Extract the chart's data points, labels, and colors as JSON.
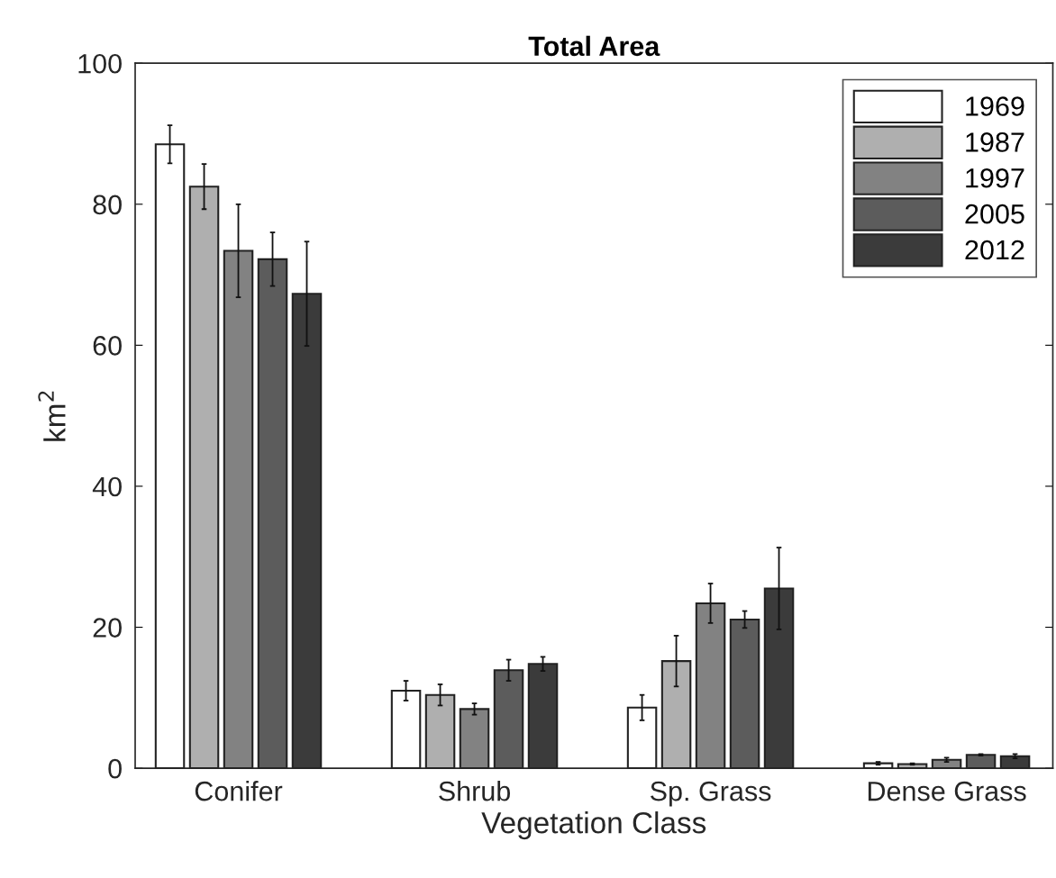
{
  "chart_data": {
    "type": "bar",
    "title": "Total Area",
    "xlabel": "Vegetation Class",
    "ylabel": "km$^{2}$",
    "categories": [
      "Conifer",
      "Shrub",
      "Sp. Grass",
      "Dense Grass"
    ],
    "series": [
      {
        "name": "1969",
        "color": "#ffffff",
        "values": [
          88.5,
          11.0,
          8.6,
          0.7
        ],
        "errors": [
          2.7,
          1.4,
          1.8,
          0.2
        ]
      },
      {
        "name": "1987",
        "color": "#afafaf",
        "values": [
          82.5,
          10.4,
          15.2,
          0.6
        ],
        "errors": [
          3.2,
          1.5,
          3.6,
          0.1
        ]
      },
      {
        "name": "1997",
        "color": "#828282",
        "values": [
          73.4,
          8.4,
          23.4,
          1.2
        ],
        "errors": [
          6.6,
          0.8,
          2.8,
          0.3
        ]
      },
      {
        "name": "2005",
        "color": "#5c5c5c",
        "values": [
          72.2,
          13.9,
          21.1,
          1.9
        ],
        "errors": [
          3.8,
          1.5,
          1.2,
          0.1
        ]
      },
      {
        "name": "2012",
        "color": "#3b3b3b",
        "values": [
          67.3,
          14.8,
          25.5,
          1.7
        ],
        "errors": [
          7.4,
          1.0,
          5.8,
          0.3
        ]
      }
    ],
    "ylim": [
      0,
      100
    ],
    "yticks": [
      0,
      20,
      40,
      60,
      80,
      100
    ],
    "grid": false,
    "legend": "top right"
  }
}
